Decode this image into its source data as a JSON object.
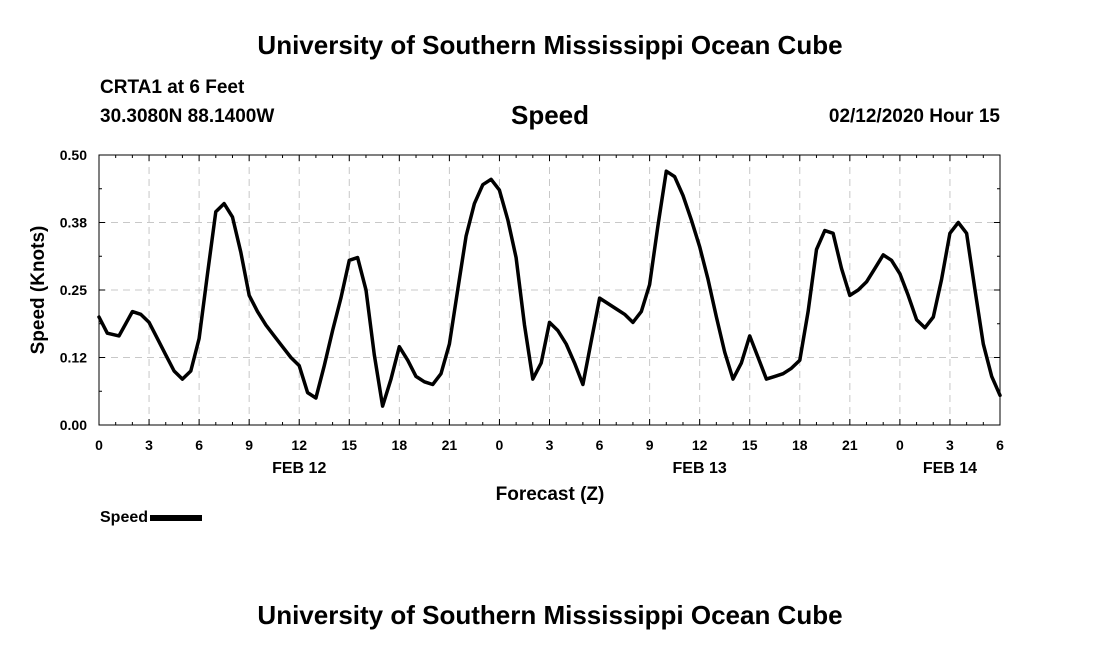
{
  "header": {
    "title": "University of Southern Mississippi Ocean Cube",
    "station": "CRTA1 at 6 Feet",
    "coordinates": "30.3080N 88.1400W",
    "parameter": "Speed",
    "timestamp": "02/12/2020 Hour 15"
  },
  "footer": {
    "title": "University of Southern Mississippi Ocean Cube"
  },
  "legend": {
    "label": "Speed",
    "color": "#000000"
  },
  "chart_data": {
    "type": "line",
    "title": "Speed",
    "xlabel": "Forecast (Z)",
    "ylabel": "Speed (Knots)",
    "xlim": [
      0,
      54
    ],
    "ylim": [
      0,
      0.5
    ],
    "grid": true,
    "y_ticks": [
      {
        "value": 0.0,
        "label": "0.00"
      },
      {
        "value": 0.125,
        "label": "0.12"
      },
      {
        "value": 0.25,
        "label": "0.25"
      },
      {
        "value": 0.375,
        "label": "0.38"
      },
      {
        "value": 0.5,
        "label": "0.50"
      }
    ],
    "x_ticks": [
      {
        "value": 0,
        "label": "0"
      },
      {
        "value": 3,
        "label": "3"
      },
      {
        "value": 6,
        "label": "6"
      },
      {
        "value": 9,
        "label": "9"
      },
      {
        "value": 12,
        "label": "12"
      },
      {
        "value": 15,
        "label": "15"
      },
      {
        "value": 18,
        "label": "18"
      },
      {
        "value": 21,
        "label": "21"
      },
      {
        "value": 24,
        "label": "0"
      },
      {
        "value": 27,
        "label": "3"
      },
      {
        "value": 30,
        "label": "6"
      },
      {
        "value": 33,
        "label": "9"
      },
      {
        "value": 36,
        "label": "12"
      },
      {
        "value": 39,
        "label": "15"
      },
      {
        "value": 42,
        "label": "18"
      },
      {
        "value": 45,
        "label": "21"
      },
      {
        "value": 48,
        "label": "0"
      },
      {
        "value": 51,
        "label": "3"
      },
      {
        "value": 54,
        "label": "6"
      }
    ],
    "date_labels": [
      {
        "value": 12,
        "label": "FEB 12"
      },
      {
        "value": 36,
        "label": "FEB 13"
      },
      {
        "value": 51,
        "label": "FEB 14"
      }
    ],
    "series": [
      {
        "name": "Speed",
        "x": [
          0,
          0.5,
          1.2,
          2,
          2.5,
          3,
          3.5,
          4,
          4.5,
          5,
          5.5,
          6,
          6.5,
          7,
          7.5,
          8,
          8.5,
          9,
          9.5,
          10,
          10.5,
          11,
          11.5,
          12,
          12.5,
          13,
          13.5,
          14,
          14.5,
          15,
          15.5,
          16,
          16.5,
          17,
          17.5,
          18,
          18.5,
          19,
          19.5,
          20,
          20.5,
          21,
          21.5,
          22,
          22.5,
          23,
          23.5,
          24,
          24.5,
          25,
          25.5,
          26,
          26.5,
          27,
          27.5,
          28,
          28.5,
          29,
          29.5,
          30,
          30.5,
          31,
          31.5,
          32,
          32.5,
          33,
          33.5,
          34,
          34.5,
          35,
          35.5,
          36,
          36.5,
          37,
          37.5,
          38,
          38.5,
          39,
          39.5,
          40,
          40.5,
          41,
          41.5,
          42,
          42.5,
          43,
          43.5,
          44,
          44.5,
          45,
          45.5,
          46,
          46.5,
          47,
          47.5,
          48,
          48.5,
          49,
          49.5,
          50,
          50.5,
          51,
          51.5,
          52,
          52.5,
          53,
          53.5,
          54
        ],
        "values": [
          0.2,
          0.17,
          0.165,
          0.21,
          0.205,
          0.19,
          0.16,
          0.13,
          0.1,
          0.085,
          0.1,
          0.16,
          0.28,
          0.395,
          0.41,
          0.385,
          0.32,
          0.24,
          0.21,
          0.185,
          0.165,
          0.145,
          0.125,
          0.11,
          0.06,
          0.05,
          0.11,
          0.175,
          0.235,
          0.305,
          0.31,
          0.25,
          0.13,
          0.035,
          0.085,
          0.145,
          0.12,
          0.09,
          0.08,
          0.075,
          0.095,
          0.15,
          0.25,
          0.35,
          0.41,
          0.445,
          0.455,
          0.435,
          0.38,
          0.31,
          0.185,
          0.085,
          0.115,
          0.19,
          0.175,
          0.15,
          0.115,
          0.075,
          0.155,
          0.235,
          0.225,
          0.215,
          0.205,
          0.19,
          0.21,
          0.26,
          0.37,
          0.47,
          0.46,
          0.425,
          0.38,
          0.33,
          0.27,
          0.2,
          0.135,
          0.085,
          0.115,
          0.165,
          0.125,
          0.085,
          0.09,
          0.095,
          0.105,
          0.12,
          0.21,
          0.325,
          0.36,
          0.355,
          0.29,
          0.24,
          0.25,
          0.265,
          0.29,
          0.315,
          0.305,
          0.28,
          0.24,
          0.195,
          0.18,
          0.2,
          0.27,
          0.355,
          0.375,
          0.355,
          0.25,
          0.15,
          0.09,
          0.055
        ]
      }
    ]
  }
}
